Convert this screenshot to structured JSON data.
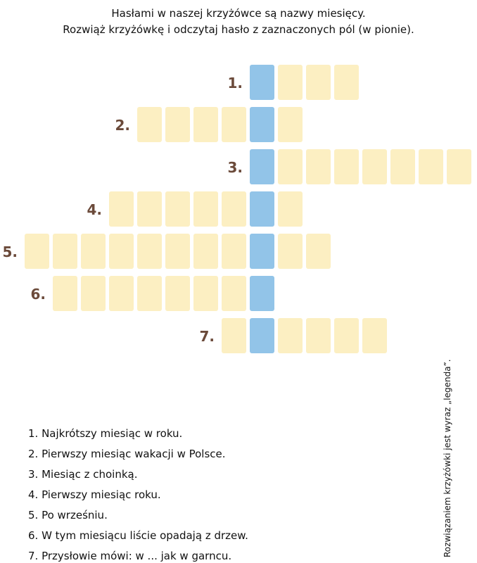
{
  "header": {
    "lines": [
      "Hasłami w naszej krzyżówce są nazwy miesięcy.",
      "Rozwiąż krzyżówkę i odczytaj hasło z zaznaczonych pól (w pionie)."
    ]
  },
  "crossword": {
    "numbers": [
      "1.",
      "2.",
      "3.",
      "4.",
      "5.",
      "6.",
      "7."
    ]
  },
  "clues": [
    "1. Najkrótszy miesiąc w roku.",
    "2. Pierwszy miesiąc wakacji w Polsce.",
    "3. Miesiąc z choinką.",
    "4. Pierwszy miesiąc roku.",
    "5. Po wrześniu.",
    "6. W tym miesiącu liście opadają z drzew.",
    "7. Przysłowie mówi: w ... jak w garncu."
  ],
  "note": "Rozwiązaniem krzyżówki jest wyraz „legenda”."
}
